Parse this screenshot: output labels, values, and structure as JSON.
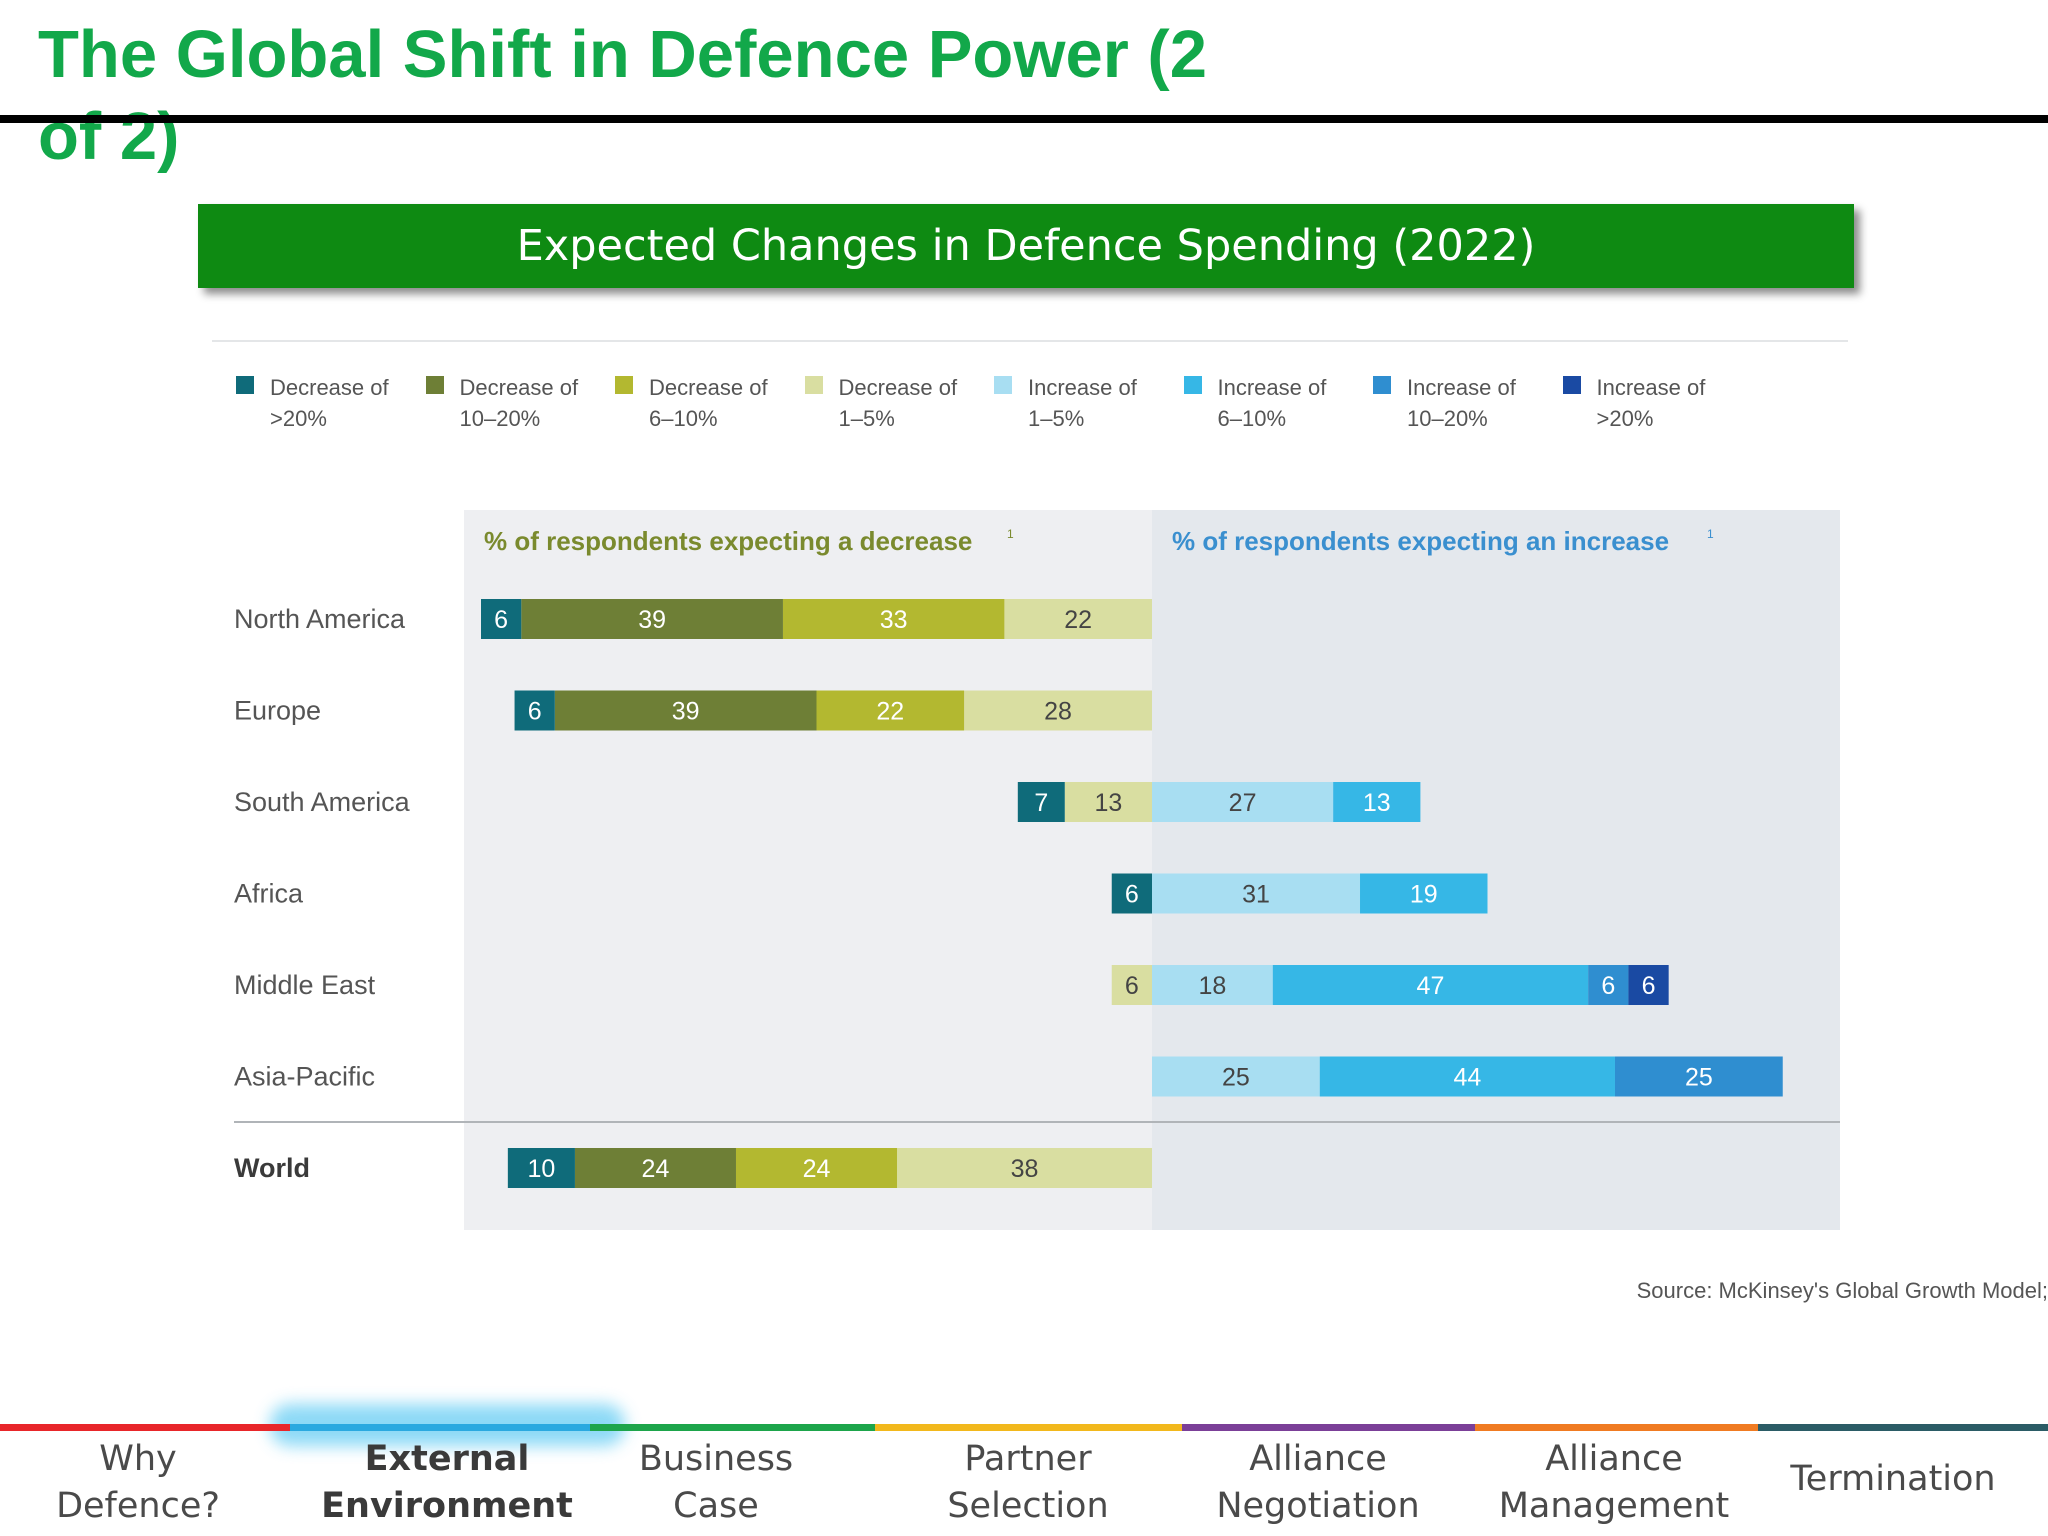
{
  "slide": {
    "title": "The Global Shift in Defence Power (2 of 2)",
    "banner": "Expected Changes in Defence Spending (2022)",
    "source": "Source: McKinsey's Global Growth Model;"
  },
  "colors": {
    "title": "#12a84a",
    "banner": "#0e8a12"
  },
  "legend": [
    {
      "line1": "Decrease of",
      "line2": ">20%",
      "color": "#0f6b7a"
    },
    {
      "line1": "Decrease of",
      "line2": "10–20%",
      "color": "#6e7f36"
    },
    {
      "line1": "Decrease of",
      "line2": "6–10%",
      "color": "#b3b830"
    },
    {
      "line1": "Decrease of",
      "line2": "1–5%",
      "color": "#d9dea1"
    },
    {
      "line1": "Increase of",
      "line2": "1–5%",
      "color": "#a8def2"
    },
    {
      "line1": "Increase of",
      "line2": "6–10%",
      "color": "#36b7e6"
    },
    {
      "line1": "Increase of",
      "line2": "10–20%",
      "color": "#2f8ed0"
    },
    {
      "line1": "Increase of",
      "line2": ">20%",
      "color": "#1a4aa3"
    }
  ],
  "chart_data": {
    "type": "bar",
    "orientation": "horizontal-diverging",
    "panel_labels": {
      "decrease": "% of respondents expecting a decrease",
      "decrease_sup": "1",
      "increase": "% of respondents expecting an increase",
      "increase_sup": "1"
    },
    "categories": [
      "North America",
      "Europe",
      "South America",
      "Africa",
      "Middle East",
      "Asia-Pacific",
      "World"
    ],
    "bold_categories": [
      "World"
    ],
    "series": [
      {
        "name": "Decrease of >20%",
        "side": "decrease",
        "color": "#0f6b7a",
        "values": [
          6,
          6,
          7,
          6,
          null,
          null,
          10
        ]
      },
      {
        "name": "Decrease of 10–20%",
        "side": "decrease",
        "color": "#6e7f36",
        "values": [
          39,
          39,
          null,
          null,
          null,
          null,
          24
        ]
      },
      {
        "name": "Decrease of 6–10%",
        "side": "decrease",
        "color": "#b3b830",
        "values": [
          33,
          22,
          null,
          null,
          null,
          null,
          24
        ]
      },
      {
        "name": "Decrease of 1–5%",
        "side": "decrease",
        "color": "#d9dea1",
        "values": [
          22,
          28,
          13,
          null,
          6,
          null,
          38
        ]
      },
      {
        "name": "Increase of 1–5%",
        "side": "increase",
        "color": "#a8def2",
        "values": [
          null,
          null,
          27,
          31,
          18,
          25,
          null
        ]
      },
      {
        "name": "Increase of 6–10%",
        "side": "increase",
        "color": "#36b7e6",
        "values": [
          null,
          null,
          13,
          19,
          47,
          44,
          null
        ]
      },
      {
        "name": "Increase of 10–20%",
        "side": "increase",
        "color": "#2f8ed0",
        "values": [
          null,
          null,
          null,
          null,
          6,
          25,
          null
        ]
      },
      {
        "name": "Increase of >20%",
        "side": "increase",
        "color": "#1a4aa3",
        "values": [
          null,
          null,
          null,
          null,
          6,
          null,
          null
        ]
      }
    ],
    "dark_value_label_series": [
      "Decrease of 1–5%",
      "Increase of 1–5%"
    ]
  },
  "nav": {
    "active_index": 1,
    "items": [
      {
        "lines": [
          "Why",
          "Defence?"
        ],
        "color": "#e8262a"
      },
      {
        "lines": [
          "External",
          "Environment"
        ],
        "color": "#2aa9e0"
      },
      {
        "lines": [
          "Business",
          "Case"
        ],
        "color": "#1da54b"
      },
      {
        "lines": [
          "Partner",
          "Selection"
        ],
        "color": "#f2b81c"
      },
      {
        "lines": [
          "Alliance",
          "Negotiation"
        ],
        "color": "#7b3f98"
      },
      {
        "lines": [
          "Alliance",
          "Management"
        ],
        "color": "#f07b22"
      },
      {
        "lines": [
          "Termination"
        ],
        "color": "#2b5c66"
      }
    ]
  }
}
